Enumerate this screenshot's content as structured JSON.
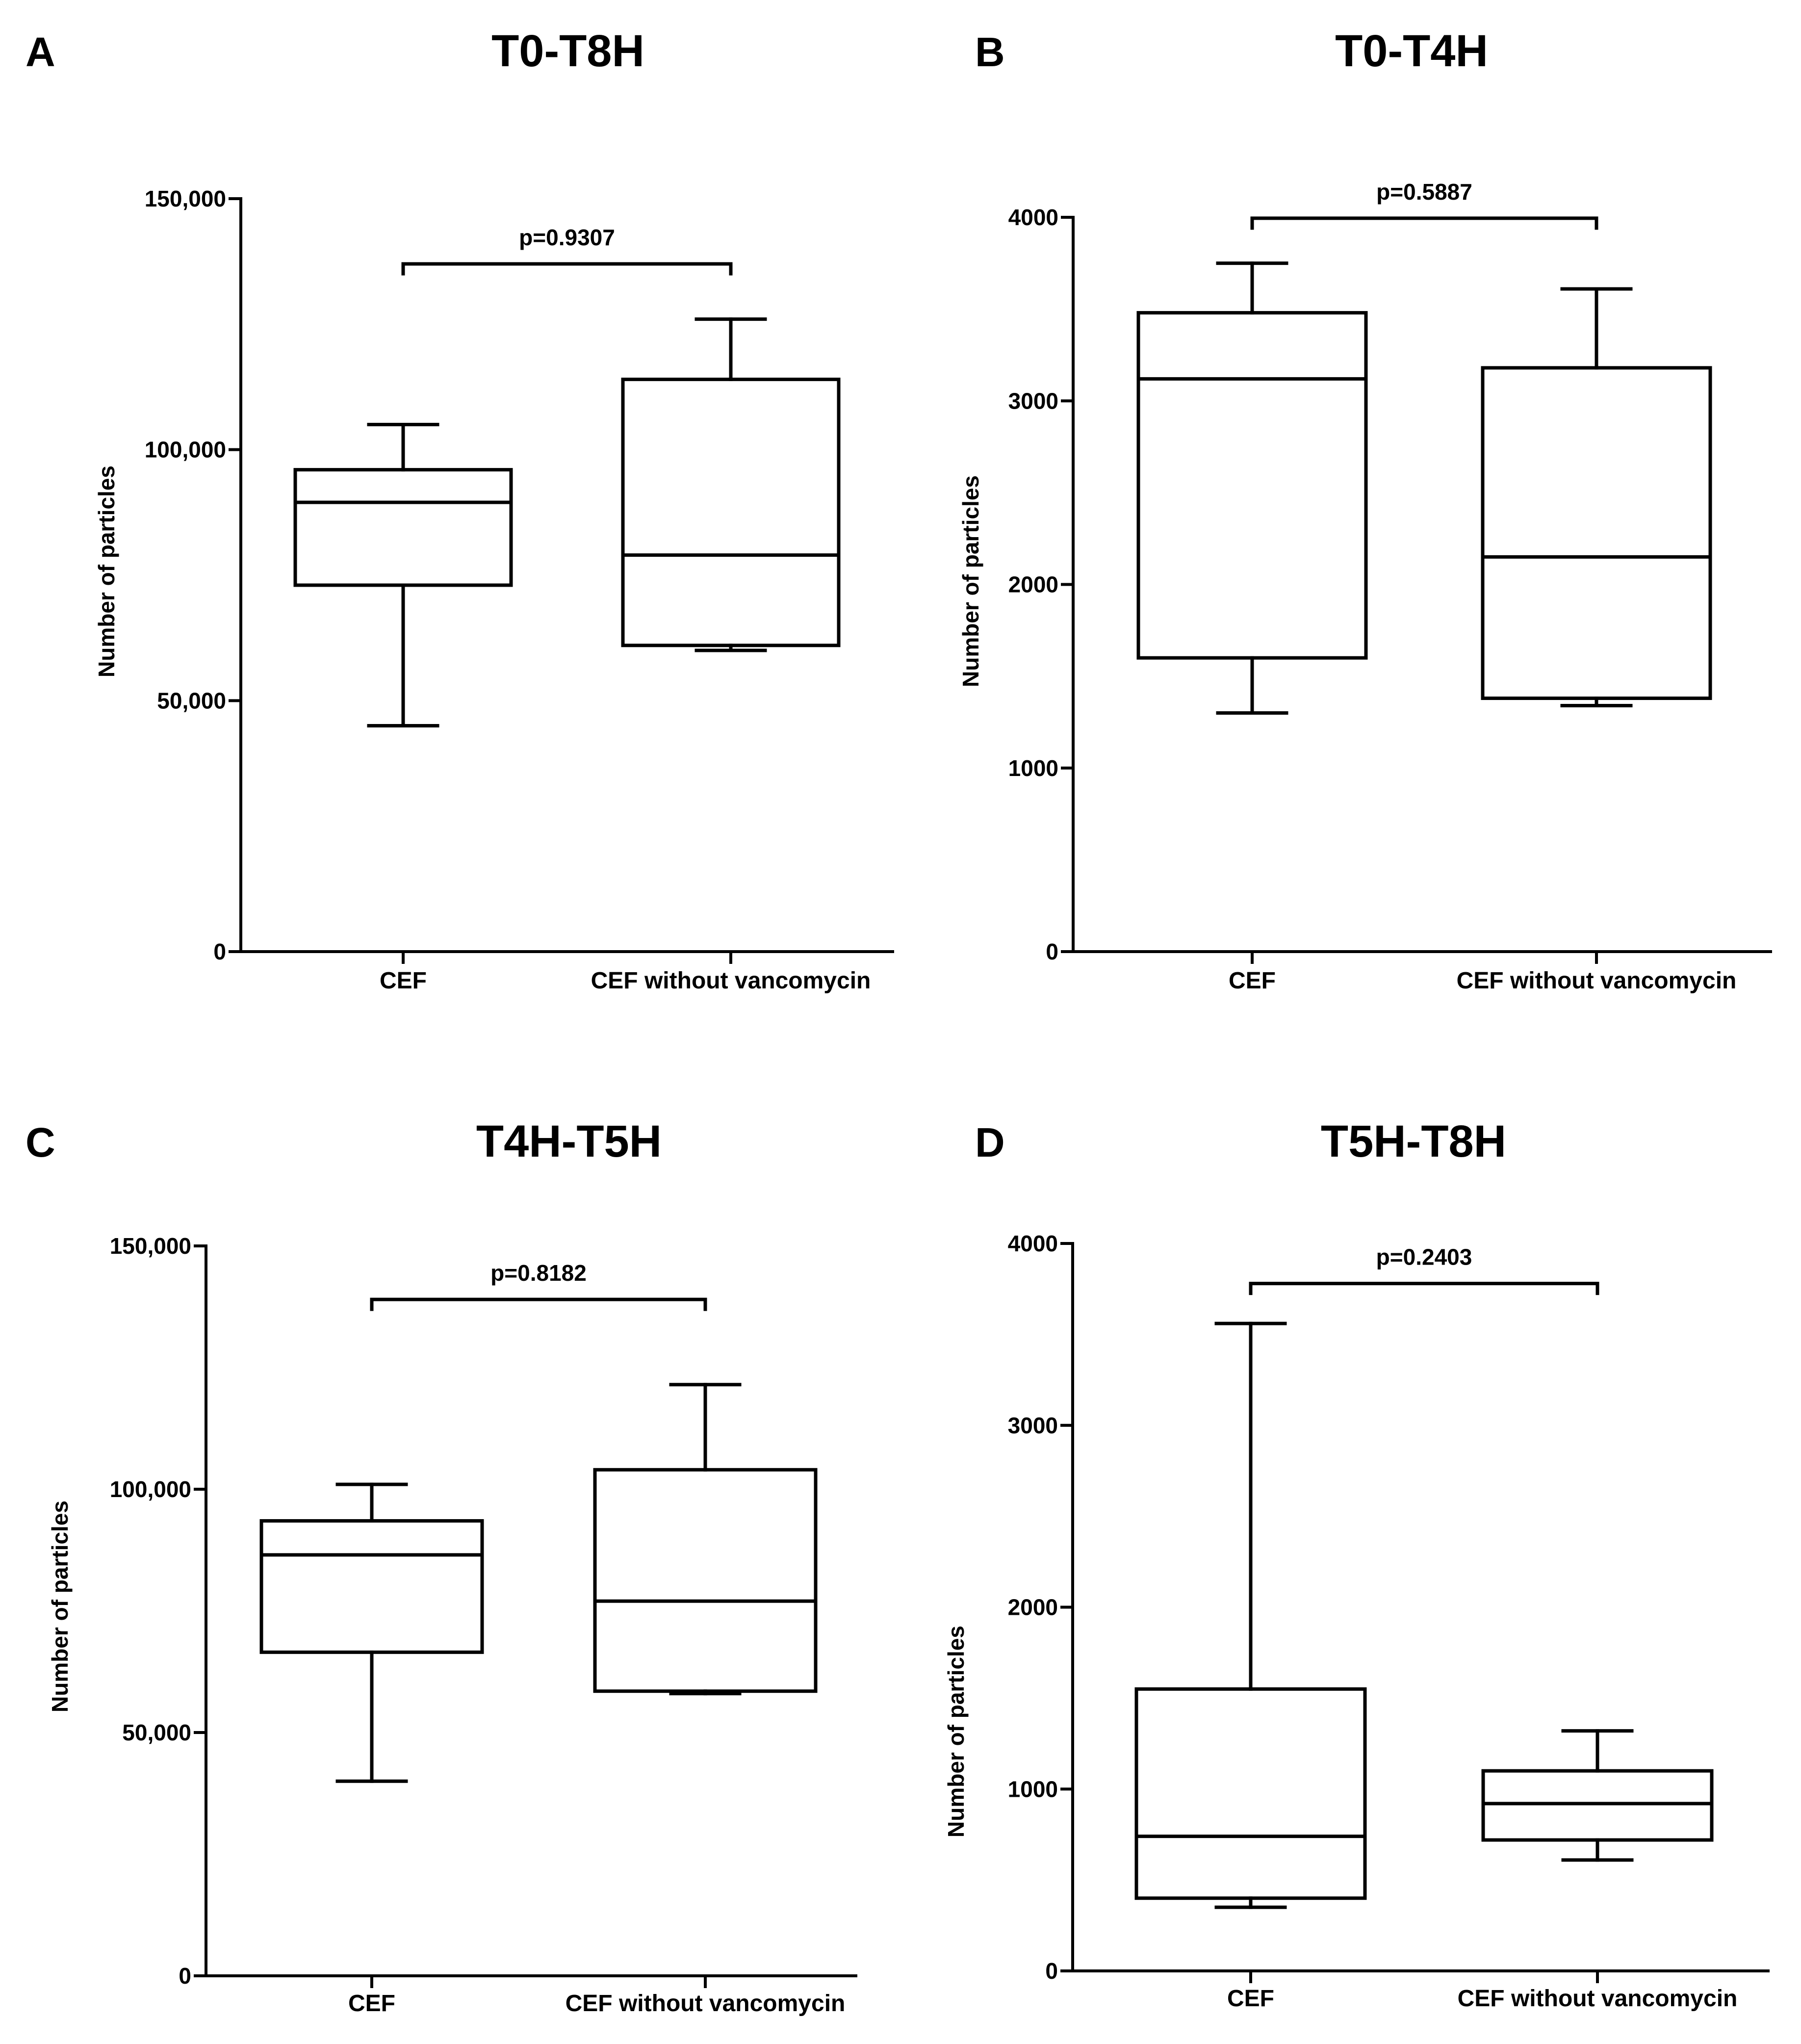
{
  "chart_data": [
    {
      "type": "boxplot",
      "panel_letter": "A",
      "title": "T0-T8H",
      "ylabel": "Number of particles",
      "xlabel": "",
      "ylim": [
        0,
        150000
      ],
      "yticks": [
        0,
        50000,
        100000,
        150000
      ],
      "ytick_labels": [
        "0",
        "50,000",
        "100,000",
        "150,000"
      ],
      "categories": [
        "CEF",
        "CEF without vancomycin"
      ],
      "boxes": [
        {
          "name": "CEF",
          "min": 45000,
          "q1": 73000,
          "median": 89500,
          "q3": 96000,
          "max": 105000
        },
        {
          "name": "CEF without vancomycin",
          "min": 60000,
          "q1": 61000,
          "median": 79000,
          "q3": 114000,
          "max": 126000
        }
      ],
      "comparison": {
        "label": "p=0.9307",
        "value": 137000
      }
    },
    {
      "type": "boxplot",
      "panel_letter": "B",
      "title": "T0-T4H",
      "ylabel": "Number of particles",
      "xlabel": "",
      "ylim": [
        0,
        4000
      ],
      "yticks": [
        0,
        1000,
        2000,
        3000,
        4000
      ],
      "ytick_labels": [
        "0",
        "1000",
        "2000",
        "3000",
        "4000"
      ],
      "categories": [
        "CEF",
        "CEF without vancomycin"
      ],
      "boxes": [
        {
          "name": "CEF",
          "min": 1300,
          "q1": 1600,
          "median": 3120,
          "q3": 3480,
          "max": 3750
        },
        {
          "name": "CEF without vancomycin",
          "min": 1340,
          "q1": 1380,
          "median": 2150,
          "q3": 3180,
          "max": 3610
        }
      ],
      "comparison": {
        "label": "p=0.5887",
        "value": 3995
      }
    },
    {
      "type": "boxplot",
      "panel_letter": "C",
      "title": "T4H-T5H",
      "ylabel": "Number of particles",
      "xlabel": "",
      "ylim": [
        0,
        150000
      ],
      "yticks": [
        0,
        50000,
        100000,
        150000
      ],
      "ytick_labels": [
        "0",
        "50,000",
        "100,000",
        "150,000"
      ],
      "categories": [
        "CEF",
        "CEF without vancomycin"
      ],
      "boxes": [
        {
          "name": "CEF",
          "min": 40000,
          "q1": 66500,
          "median": 86500,
          "q3": 93500,
          "max": 101000
        },
        {
          "name": "CEF without vancomycin",
          "min": 58000,
          "q1": 58500,
          "median": 77000,
          "q3": 104000,
          "max": 121500
        }
      ],
      "comparison": {
        "label": "p=0.8182",
        "value": 139000
      }
    },
    {
      "type": "boxplot",
      "panel_letter": "D",
      "title": "T5H-T8H",
      "ylabel": "Number of particles",
      "xlabel": "",
      "ylim": [
        0,
        4000
      ],
      "yticks": [
        0,
        1000,
        2000,
        3000,
        4000
      ],
      "ytick_labels": [
        "0",
        "1000",
        "2000",
        "3000",
        "4000"
      ],
      "categories": [
        "CEF",
        "CEF without vancomycin"
      ],
      "boxes": [
        {
          "name": "CEF",
          "min": 350,
          "q1": 400,
          "median": 740,
          "q3": 1550,
          "max": 3560
        },
        {
          "name": "CEF without vancomycin",
          "min": 610,
          "q1": 720,
          "median": 920,
          "q3": 1100,
          "max": 1320
        }
      ],
      "comparison": {
        "label": "p=0.2403",
        "value": 3780
      }
    }
  ]
}
